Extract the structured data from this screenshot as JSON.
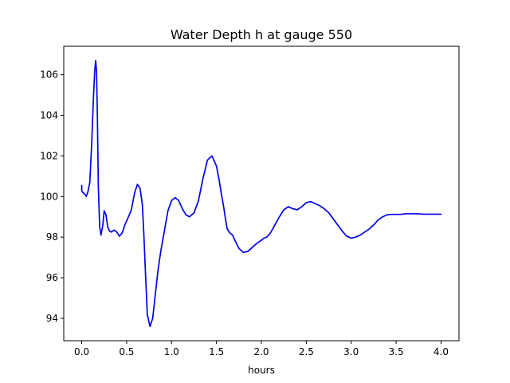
{
  "chart_data": {
    "type": "line",
    "title": "Water Depth h at gauge 550",
    "xlabel": "hours",
    "ylabel": "",
    "xlim": [
      -0.2,
      4.2
    ],
    "ylim": [
      92.9,
      107.4
    ],
    "xticks": [
      0.0,
      0.5,
      1.0,
      1.5,
      2.0,
      2.5,
      3.0,
      3.5,
      4.0
    ],
    "xtick_labels": [
      "0.0",
      "0.5",
      "1.0",
      "1.5",
      "2.0",
      "2.5",
      "3.0",
      "3.5",
      "4.0"
    ],
    "yticks": [
      94,
      96,
      98,
      100,
      102,
      104,
      106
    ],
    "ytick_labels": [
      "94",
      "96",
      "98",
      "100",
      "102",
      "104",
      "106"
    ],
    "grid": false,
    "series": [
      {
        "color": "#0000ee",
        "x": [
          0.0,
          0.0,
          0.01,
          0.03,
          0.05,
          0.07,
          0.09,
          0.11,
          0.13,
          0.145,
          0.155,
          0.165,
          0.175,
          0.185,
          0.2,
          0.215,
          0.235,
          0.25,
          0.27,
          0.29,
          0.31,
          0.33,
          0.36,
          0.39,
          0.42,
          0.45,
          0.48,
          0.51,
          0.55,
          0.59,
          0.62,
          0.65,
          0.675,
          0.69,
          0.71,
          0.73,
          0.76,
          0.79,
          0.81,
          0.83,
          0.85,
          0.88,
          0.92,
          0.96,
          1.0,
          1.04,
          1.08,
          1.12,
          1.16,
          1.2,
          1.25,
          1.3,
          1.35,
          1.4,
          1.45,
          1.5,
          1.53,
          1.56,
          1.58,
          1.6,
          1.62,
          1.65,
          1.68,
          1.71,
          1.75,
          1.8,
          1.85,
          1.9,
          1.95,
          2.0,
          2.03,
          2.06,
          2.1,
          2.15,
          2.2,
          2.25,
          2.3,
          2.35,
          2.4,
          2.45,
          2.5,
          2.55,
          2.6,
          2.65,
          2.7,
          2.75,
          2.8,
          2.85,
          2.9,
          2.95,
          3.0,
          3.05,
          3.1,
          3.15,
          3.2,
          3.25,
          3.3,
          3.35,
          3.4,
          3.45,
          3.5,
          3.55,
          3.6,
          3.65,
          3.7,
          3.75,
          3.8,
          3.85,
          3.9,
          3.95,
          4.0
        ],
        "y": [
          100.55,
          100.3,
          100.2,
          100.15,
          100.0,
          100.25,
          100.7,
          102.5,
          104.8,
          106.2,
          106.7,
          106.2,
          103.8,
          100.5,
          98.5,
          98.1,
          98.6,
          99.3,
          99.1,
          98.5,
          98.3,
          98.25,
          98.35,
          98.25,
          98.05,
          98.2,
          98.6,
          98.9,
          99.3,
          100.2,
          100.6,
          100.4,
          99.6,
          98.3,
          96.2,
          94.2,
          93.6,
          94.0,
          94.8,
          95.6,
          96.4,
          97.3,
          98.3,
          99.3,
          99.8,
          99.95,
          99.8,
          99.4,
          99.1,
          99.0,
          99.2,
          99.8,
          100.9,
          101.8,
          102.0,
          101.5,
          100.8,
          100.0,
          99.5,
          98.9,
          98.4,
          98.2,
          98.1,
          97.8,
          97.45,
          97.25,
          97.3,
          97.5,
          97.7,
          97.85,
          97.95,
          98.0,
          98.2,
          98.6,
          99.0,
          99.35,
          99.5,
          99.4,
          99.35,
          99.5,
          99.7,
          99.75,
          99.65,
          99.55,
          99.4,
          99.2,
          98.9,
          98.6,
          98.3,
          98.05,
          97.95,
          98.0,
          98.1,
          98.25,
          98.4,
          98.6,
          98.85,
          99.0,
          99.1,
          99.12,
          99.12,
          99.12,
          99.15,
          99.15,
          99.15,
          99.15,
          99.13,
          99.13,
          99.13,
          99.13,
          99.13
        ]
      }
    ]
  }
}
